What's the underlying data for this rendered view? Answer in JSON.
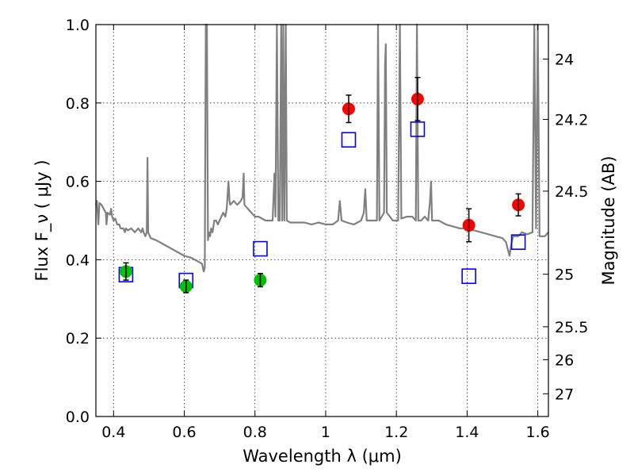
{
  "chart_data": {
    "type": "scatter",
    "title": "",
    "xlabel": "Wavelength  λ (μm)",
    "ylabel": "Flux  F_ν  ( μJy )",
    "y2label": "Magnitude (AB)",
    "xlim": [
      0.35,
      1.63
    ],
    "ylim": [
      0.0,
      1.0
    ],
    "grid": true,
    "x_ticks": [
      {
        "value": 0.4,
        "label": "0.4"
      },
      {
        "value": 0.6,
        "label": "0.6"
      },
      {
        "value": 0.8,
        "label": "0.8"
      },
      {
        "value": 1.0,
        "label": "1"
      },
      {
        "value": 1.2,
        "label": "1.2"
      },
      {
        "value": 1.4,
        "label": "1.4"
      },
      {
        "value": 1.6,
        "label": "1.6"
      }
    ],
    "y_ticks": [
      {
        "value": 0.0,
        "label": "0.0"
      },
      {
        "value": 0.2,
        "label": "0.2"
      },
      {
        "value": 0.4,
        "label": "0.4"
      },
      {
        "value": 0.6,
        "label": "0.6"
      },
      {
        "value": 0.8,
        "label": "0.8"
      },
      {
        "value": 1.0,
        "label": "1.0"
      }
    ],
    "y2_ticks": [
      {
        "flux": 0.912,
        "label": "24"
      },
      {
        "flux": 0.758,
        "label": "24.2"
      },
      {
        "flux": 0.575,
        "label": "24.5"
      },
      {
        "flux": 0.363,
        "label": "25"
      },
      {
        "flux": 0.229,
        "label": "25.5"
      },
      {
        "flux": 0.145,
        "label": "26"
      },
      {
        "flux": 0.058,
        "label": "27"
      }
    ],
    "series": [
      {
        "name": "Model spectrum",
        "kind": "line",
        "color": "#808080",
        "points": [
          [
            0.35,
            0.54
          ],
          [
            0.353,
            0.55
          ],
          [
            0.357,
            0.49
          ],
          [
            0.36,
            0.545
          ],
          [
            0.366,
            0.54
          ],
          [
            0.372,
            0.53
          ],
          [
            0.378,
            0.52
          ],
          [
            0.38,
            0.49
          ],
          [
            0.383,
            0.52
          ],
          [
            0.39,
            0.515
          ],
          [
            0.393,
            0.53
          ],
          [
            0.396,
            0.51
          ],
          [
            0.4,
            0.5
          ],
          [
            0.405,
            0.505
          ],
          [
            0.41,
            0.49
          ],
          [
            0.416,
            0.49
          ],
          [
            0.42,
            0.48
          ],
          [
            0.428,
            0.48
          ],
          [
            0.432,
            0.47
          ],
          [
            0.435,
            0.48
          ],
          [
            0.44,
            0.475
          ],
          [
            0.45,
            0.48
          ],
          [
            0.46,
            0.47
          ],
          [
            0.47,
            0.48
          ],
          [
            0.478,
            0.47
          ],
          [
            0.482,
            0.48
          ],
          [
            0.485,
            0.47
          ],
          [
            0.49,
            0.46
          ],
          [
            0.494,
            0.47
          ],
          [
            0.496,
            0.66
          ],
          [
            0.498,
            0.47
          ],
          [
            0.505,
            0.455
          ],
          [
            0.52,
            0.45
          ],
          [
            0.54,
            0.44
          ],
          [
            0.56,
            0.43
          ],
          [
            0.58,
            0.42
          ],
          [
            0.6,
            0.41
          ],
          [
            0.62,
            0.405
          ],
          [
            0.64,
            0.395
          ],
          [
            0.65,
            0.39
          ],
          [
            0.655,
            0.37
          ],
          [
            0.658,
            0.38
          ],
          [
            0.661,
            1.0
          ],
          [
            0.664,
            1.0
          ],
          [
            0.667,
            0.45
          ],
          [
            0.67,
            0.47
          ],
          [
            0.673,
            0.46
          ],
          [
            0.676,
            0.48
          ],
          [
            0.68,
            0.47
          ],
          [
            0.685,
            0.5
          ],
          [
            0.69,
            0.5
          ],
          [
            0.695,
            0.49
          ],
          [
            0.7,
            0.5
          ],
          [
            0.71,
            0.52
          ],
          [
            0.716,
            0.51
          ],
          [
            0.72,
            0.53
          ],
          [
            0.725,
            0.6
          ],
          [
            0.728,
            0.55
          ],
          [
            0.73,
            0.54
          ],
          [
            0.74,
            0.55
          ],
          [
            0.75,
            0.54
          ],
          [
            0.76,
            0.55
          ],
          [
            0.765,
            0.56
          ],
          [
            0.768,
            0.62
          ],
          [
            0.77,
            0.54
          ],
          [
            0.78,
            0.53
          ],
          [
            0.79,
            0.52
          ],
          [
            0.8,
            0.51
          ],
          [
            0.81,
            0.51
          ],
          [
            0.82,
            0.505
          ],
          [
            0.83,
            0.5
          ],
          [
            0.84,
            0.5
          ],
          [
            0.85,
            0.5
          ],
          [
            0.855,
            0.62
          ],
          [
            0.858,
            0.51
          ],
          [
            0.862,
            1.0
          ],
          [
            0.866,
            0.5
          ],
          [
            0.87,
            0.5
          ],
          [
            0.874,
            1.0
          ],
          [
            0.877,
            0.5
          ],
          [
            0.88,
            1.0
          ],
          [
            0.883,
            0.5
          ],
          [
            0.887,
            1.0
          ],
          [
            0.89,
            0.5
          ],
          [
            0.9,
            0.495
          ],
          [
            0.92,
            0.495
          ],
          [
            0.94,
            0.495
          ],
          [
            0.96,
            0.49
          ],
          [
            0.98,
            0.495
          ],
          [
            1.0,
            0.49
          ],
          [
            1.02,
            0.49
          ],
          [
            1.035,
            0.5
          ],
          [
            1.04,
            0.55
          ],
          [
            1.045,
            0.5
          ],
          [
            1.06,
            0.495
          ],
          [
            1.08,
            0.49
          ],
          [
            1.1,
            0.5
          ],
          [
            1.108,
            0.52
          ],
          [
            1.112,
            0.58
          ],
          [
            1.116,
            0.5
          ],
          [
            1.13,
            0.5
          ],
          [
            1.145,
            0.5
          ],
          [
            1.148,
            1.0
          ],
          [
            1.152,
            0.5
          ],
          [
            1.165,
            0.52
          ],
          [
            1.168,
            0.9
          ],
          [
            1.17,
            0.95
          ],
          [
            1.173,
            0.52
          ],
          [
            1.19,
            0.5
          ],
          [
            1.205,
            0.5
          ],
          [
            1.21,
            1.0
          ],
          [
            1.214,
            0.505
          ],
          [
            1.23,
            0.51
          ],
          [
            1.245,
            0.51
          ],
          [
            1.255,
            0.5
          ],
          [
            1.258,
            1.0
          ],
          [
            1.262,
            0.5
          ],
          [
            1.27,
            0.5
          ],
          [
            1.28,
            0.51
          ],
          [
            1.29,
            0.5
          ],
          [
            1.295,
            0.55
          ],
          [
            1.298,
            0.6
          ],
          [
            1.301,
            0.5
          ],
          [
            1.32,
            0.5
          ],
          [
            1.34,
            0.49
          ],
          [
            1.36,
            0.485
          ],
          [
            1.38,
            0.48
          ],
          [
            1.4,
            0.48
          ],
          [
            1.42,
            0.475
          ],
          [
            1.44,
            0.47
          ],
          [
            1.46,
            0.465
          ],
          [
            1.48,
            0.46
          ],
          [
            1.5,
            0.455
          ],
          [
            1.51,
            0.445
          ],
          [
            1.52,
            0.41
          ],
          [
            1.525,
            0.44
          ],
          [
            1.53,
            0.46
          ],
          [
            1.545,
            0.46
          ],
          [
            1.555,
            0.47
          ],
          [
            1.57,
            0.465
          ],
          [
            1.585,
            0.47
          ],
          [
            1.59,
            1.0
          ],
          [
            1.595,
            0.48
          ],
          [
            1.6,
            1.0
          ],
          [
            1.605,
            0.46
          ],
          [
            1.61,
            0.46
          ],
          [
            1.615,
            0.46
          ],
          [
            1.62,
            0.46
          ],
          [
            1.625,
            0.465
          ],
          [
            1.63,
            0.47
          ]
        ]
      },
      {
        "name": "Red points",
        "kind": "scatter",
        "marker": "circle",
        "color": "#ff0000",
        "points": [
          {
            "x": 1.065,
            "y": 0.785,
            "err": 0.035
          },
          {
            "x": 1.26,
            "y": 0.81,
            "err": 0.055
          },
          {
            "x": 1.405,
            "y": 0.488,
            "err": 0.042
          },
          {
            "x": 1.545,
            "y": 0.54,
            "err": 0.028
          }
        ]
      },
      {
        "name": "Green points",
        "kind": "scatter",
        "marker": "circle",
        "color": "#00c000",
        "points": [
          {
            "x": 0.435,
            "y": 0.37,
            "err": 0.022
          },
          {
            "x": 0.605,
            "y": 0.332,
            "err": 0.016
          },
          {
            "x": 0.815,
            "y": 0.348,
            "err": 0.017
          }
        ]
      },
      {
        "name": "Blue squares",
        "kind": "scatter",
        "marker": "open-square",
        "color": "#0000ff",
        "points": [
          {
            "x": 0.435,
            "y": 0.362
          },
          {
            "x": 0.605,
            "y": 0.347
          },
          {
            "x": 0.815,
            "y": 0.428
          },
          {
            "x": 1.065,
            "y": 0.706
          },
          {
            "x": 1.26,
            "y": 0.733
          },
          {
            "x": 1.405,
            "y": 0.358
          },
          {
            "x": 1.545,
            "y": 0.445
          }
        ]
      }
    ]
  }
}
